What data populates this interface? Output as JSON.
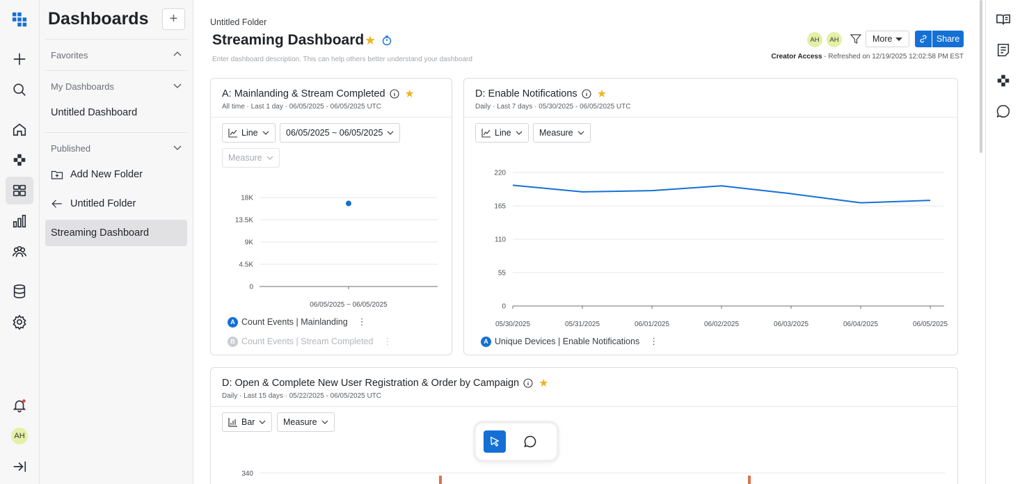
{
  "rail": {
    "user_initials": "AH",
    "icons": [
      "logo-icon",
      "plus-icon",
      "search-icon",
      "home-icon",
      "apps-icon",
      "dashboards-icon",
      "reports-icon",
      "users-icon",
      "database-icon",
      "gear-icon",
      "bell-icon",
      "collapse-icon"
    ]
  },
  "sidebar": {
    "title": "Dashboards",
    "add_label": "+",
    "favorites_label": "Favorites",
    "my_dashboards_label": "My Dashboards",
    "my_items": [
      "Untitled Dashboard"
    ],
    "published_label": "Published",
    "published_items": [
      {
        "label": "Add New Folder",
        "icon": "folder-plus-icon"
      },
      {
        "label": "Untitled Folder",
        "icon": "arrow-left-icon"
      },
      {
        "label": "Streaming Dashboard",
        "icon": ""
      }
    ]
  },
  "header": {
    "breadcrumb": "Untitled Folder",
    "title": "Streaming Dashboard",
    "description_placeholder": "Enter dashboard description. This can help others better understand your dashboard",
    "avatars": [
      "AH",
      "AH"
    ],
    "more_label": "More",
    "share_label": "Share",
    "access_label": "Creator Access",
    "refreshed_text": " - Refreshed on 12/19/2025 12:02:58 PM EST"
  },
  "cards": [
    {
      "title": "A: Mainlanding & Stream Completed",
      "subtitle": "All time  ·  Last 1 day  ·  06/05/2025  -  06/05/2025  UTC",
      "chart_type_label": "Line",
      "date_range_label": "06/05/2025 ~ 06/05/2025",
      "measure_label": "Measure",
      "legend": [
        {
          "badge": "A",
          "label": "Count Events | Mainlanding"
        },
        {
          "badge": "B",
          "label": "Count Events | Stream Completed"
        }
      ]
    },
    {
      "title": "D: Enable Notifications",
      "subtitle": "Daily  ·  Last 7 days  ·  05/30/2025  -  06/05/2025  UTC",
      "chart_type_label": "Line",
      "measure_label": "Measure",
      "legend": [
        {
          "badge": "A",
          "label": "Unique Devices | Enable Notifications"
        }
      ]
    },
    {
      "title": "D: Open & Complete New User Registration & Order by Campaign",
      "subtitle": "Daily  ·  Last 15 days  ·  05/22/2025  -  06/05/2025  UTC",
      "chart_type_label": "Bar",
      "measure_label": "Measure"
    }
  ],
  "chart_data": [
    {
      "type": "scatter",
      "y_ticks": [
        "0",
        "4.5K",
        "9K",
        "13.5K",
        "18K"
      ],
      "ylim": [
        0,
        18000
      ],
      "categories": [
        "06/05/2025 ~ 06/05/2025"
      ],
      "series": [
        {
          "name": "Count Events | Mainlanding",
          "values": [
            16800
          ]
        }
      ],
      "colors": [
        "#1470d4"
      ]
    },
    {
      "type": "line",
      "y_ticks": [
        "0",
        "55",
        "110",
        "165",
        "220"
      ],
      "ylim": [
        0,
        220
      ],
      "categories": [
        "05/30/2025",
        "05/31/2025",
        "06/01/2025",
        "06/02/2025",
        "06/03/2025",
        "06/04/2025",
        "06/05/2025"
      ],
      "series": [
        {
          "name": "Unique Devices | Enable Notifications",
          "values": [
            199,
            188,
            190,
            198,
            185,
            170,
            174
          ]
        }
      ],
      "colors": [
        "#1470d4"
      ]
    },
    {
      "type": "bar",
      "y_ticks": [
        "340"
      ],
      "colors": [
        "#d9734e"
      ]
    }
  ]
}
